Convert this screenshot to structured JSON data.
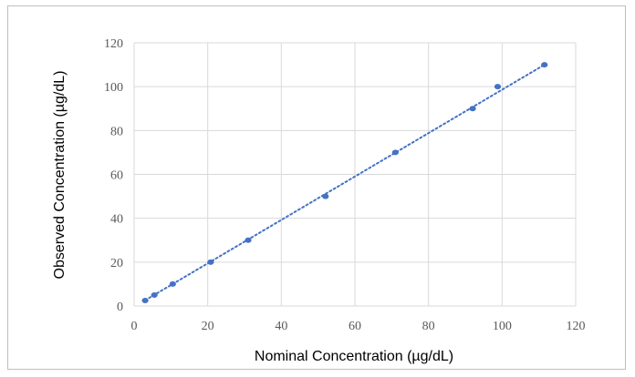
{
  "chart_data": {
    "type": "scatter",
    "title": "",
    "xlabel": "Nominal Concentration (µg/dL)",
    "ylabel": "Observed Concentration (µg/dL)",
    "xlim": [
      0,
      120
    ],
    "ylim": [
      0,
      120
    ],
    "xticks": [
      0,
      20,
      40,
      60,
      80,
      100,
      120
    ],
    "yticks": [
      0,
      20,
      40,
      60,
      80,
      100,
      120
    ],
    "grid": true,
    "legend": "none",
    "series": [
      {
        "points": [
          {
            "x": 3,
            "y": 2.5
          },
          {
            "x": 5.5,
            "y": 5
          },
          {
            "x": 10.5,
            "y": 10
          },
          {
            "x": 20.8,
            "y": 20
          },
          {
            "x": 31,
            "y": 30
          },
          {
            "x": 52,
            "y": 50
          },
          {
            "x": 71,
            "y": 70
          },
          {
            "x": 92,
            "y": 90
          },
          {
            "x": 98.8,
            "y": 100
          },
          {
            "x": 111.5,
            "y": 110
          }
        ],
        "marker_color": "#4472c4"
      }
    ],
    "trendline": {
      "style": "dotted",
      "color": "#4472c4",
      "from": {
        "x": 3,
        "y": 2.6
      },
      "to": {
        "x": 111.5,
        "y": 110
      }
    }
  }
}
